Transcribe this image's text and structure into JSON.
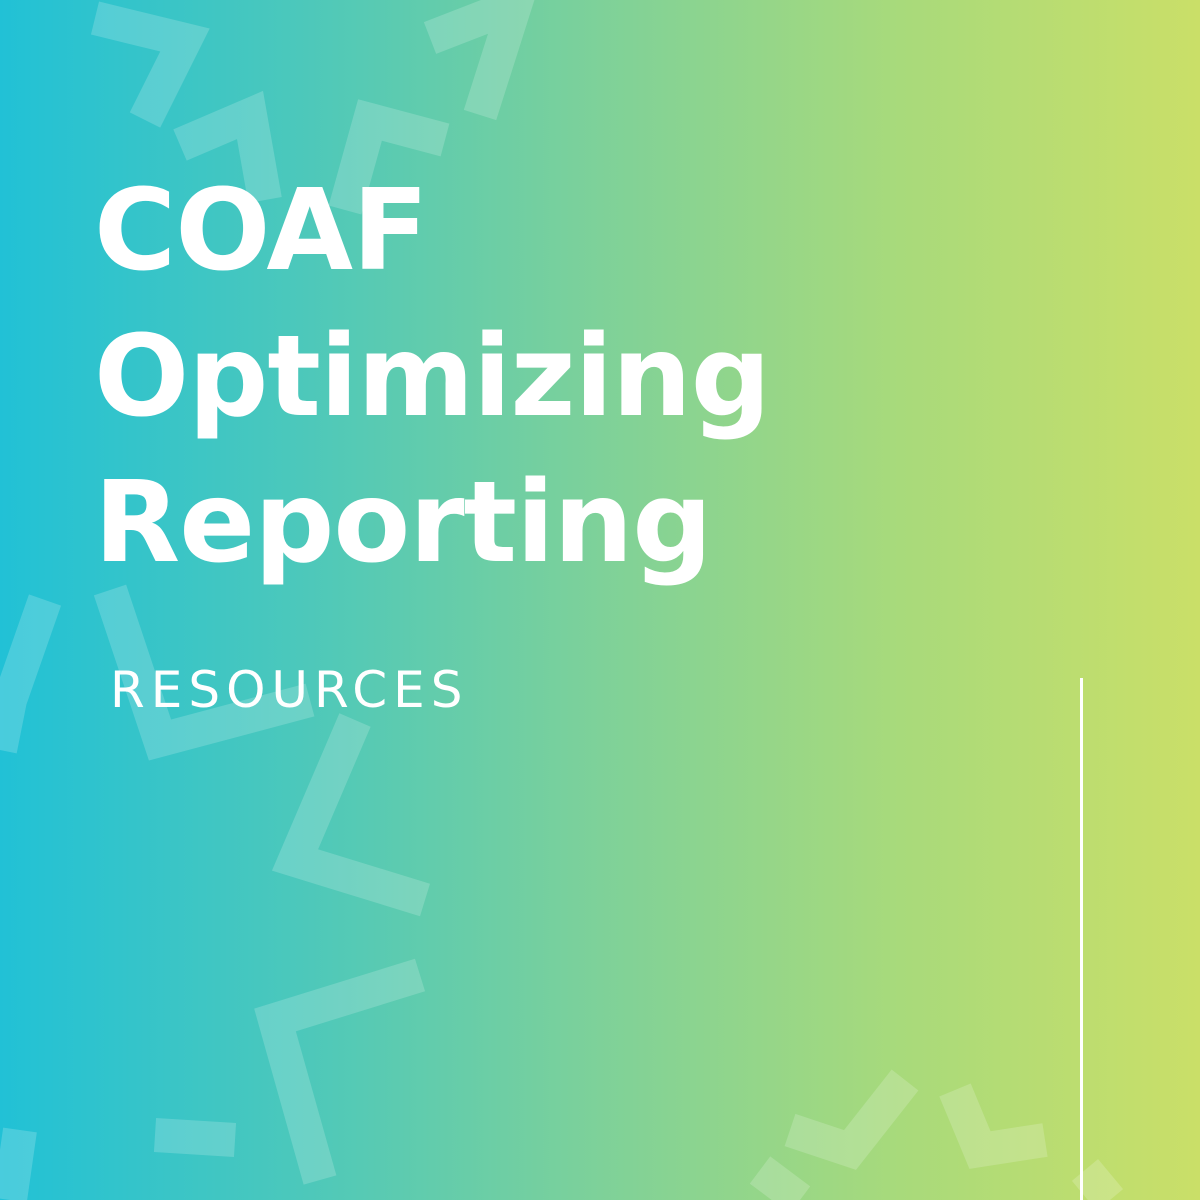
{
  "card": {
    "title_lines": [
      "COAF",
      "Optimizing",
      "Reporting"
    ],
    "subtitle": "RESOURCES"
  },
  "colors": {
    "gradient_start": "#21c1d6",
    "gradient_end": "#cadf68",
    "text": "#ffffff"
  },
  "icons": {
    "background_pattern": "chevron-pattern-icon"
  }
}
